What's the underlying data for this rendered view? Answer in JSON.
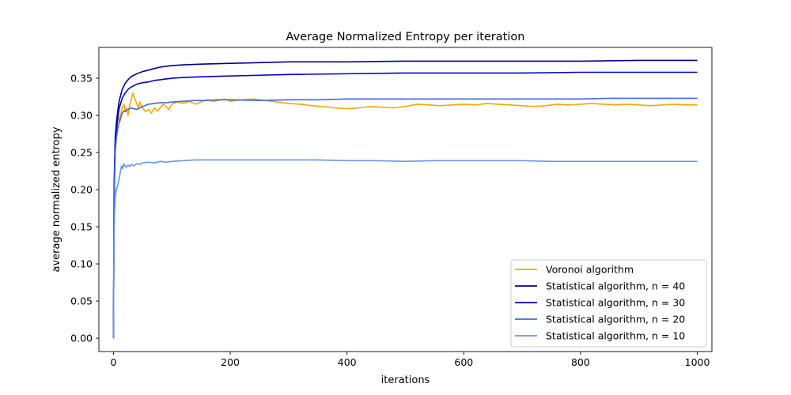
{
  "chart_data": {
    "type": "line",
    "title": "Average Normalized Entropy per iteration",
    "xlabel": "iterations",
    "ylabel": "average normalized entropy",
    "xlim": [
      -25,
      1025
    ],
    "ylim": [
      -0.018,
      0.3915
    ],
    "xticks": [
      0,
      200,
      400,
      600,
      800,
      1000
    ],
    "xtick_labels": [
      "0",
      "200",
      "400",
      "600",
      "800",
      "1000"
    ],
    "yticks": [
      0.0,
      0.05,
      0.1,
      0.15,
      0.2,
      0.25,
      0.3,
      0.35
    ],
    "ytick_labels": [
      "0.00",
      "0.05",
      "0.10",
      "0.15",
      "0.20",
      "0.25",
      "0.30",
      "0.35"
    ],
    "grid": false,
    "legend_position": "lower-right",
    "series": [
      {
        "name": "Voronoi algorithm",
        "color": "#ffa500",
        "x": [
          0,
          1,
          2,
          3,
          5,
          8,
          10,
          12,
          15,
          18,
          20,
          22,
          25,
          28,
          30,
          33,
          35,
          38,
          40,
          43,
          45,
          48,
          50,
          55,
          60,
          65,
          70,
          75,
          80,
          85,
          90,
          95,
          100,
          110,
          120,
          130,
          140,
          150,
          160,
          170,
          180,
          190,
          200,
          220,
          240,
          260,
          280,
          300,
          320,
          340,
          360,
          380,
          400,
          420,
          440,
          460,
          480,
          500,
          520,
          540,
          560,
          580,
          600,
          620,
          640,
          660,
          680,
          700,
          720,
          740,
          760,
          780,
          800,
          820,
          840,
          860,
          880,
          900,
          920,
          940,
          960,
          980,
          1000
        ],
        "y": [
          0.0,
          0.15,
          0.2,
          0.25,
          0.28,
          0.3,
          0.29,
          0.3,
          0.31,
          0.315,
          0.305,
          0.31,
          0.3,
          0.315,
          0.32,
          0.33,
          0.325,
          0.32,
          0.315,
          0.31,
          0.318,
          0.312,
          0.31,
          0.305,
          0.308,
          0.303,
          0.31,
          0.306,
          0.31,
          0.315,
          0.312,
          0.308,
          0.315,
          0.318,
          0.316,
          0.319,
          0.315,
          0.318,
          0.321,
          0.319,
          0.32,
          0.322,
          0.319,
          0.321,
          0.322,
          0.32,
          0.318,
          0.316,
          0.315,
          0.313,
          0.312,
          0.31,
          0.309,
          0.31,
          0.312,
          0.311,
          0.31,
          0.312,
          0.315,
          0.314,
          0.313,
          0.314,
          0.315,
          0.314,
          0.316,
          0.315,
          0.314,
          0.313,
          0.312,
          0.313,
          0.315,
          0.314,
          0.315,
          0.316,
          0.315,
          0.314,
          0.315,
          0.314,
          0.313,
          0.314,
          0.315,
          0.314,
          0.314
        ]
      },
      {
        "name": "Statistical algorithm, n = 40",
        "color": "#00008b",
        "x": [
          0,
          1,
          2,
          3,
          5,
          8,
          10,
          15,
          20,
          25,
          30,
          40,
          50,
          60,
          70,
          80,
          90,
          100,
          120,
          150,
          200,
          250,
          300,
          400,
          500,
          600,
          700,
          800,
          900,
          1000
        ],
        "y": [
          0.0,
          0.2,
          0.24,
          0.27,
          0.29,
          0.31,
          0.32,
          0.335,
          0.343,
          0.348,
          0.352,
          0.356,
          0.359,
          0.361,
          0.363,
          0.365,
          0.366,
          0.367,
          0.368,
          0.369,
          0.37,
          0.371,
          0.372,
          0.372,
          0.373,
          0.373,
          0.373,
          0.373,
          0.374,
          0.374
        ]
      },
      {
        "name": "Statistical algorithm, n = 30",
        "color": "#0000cd",
        "x": [
          0,
          1,
          2,
          3,
          5,
          8,
          10,
          15,
          20,
          25,
          30,
          40,
          50,
          60,
          70,
          80,
          90,
          100,
          120,
          150,
          200,
          250,
          300,
          400,
          500,
          600,
          700,
          800,
          900,
          1000
        ],
        "y": [
          0.0,
          0.19,
          0.23,
          0.26,
          0.28,
          0.3,
          0.31,
          0.323,
          0.33,
          0.335,
          0.338,
          0.342,
          0.344,
          0.345,
          0.347,
          0.348,
          0.349,
          0.35,
          0.351,
          0.352,
          0.353,
          0.354,
          0.355,
          0.356,
          0.357,
          0.357,
          0.357,
          0.358,
          0.358,
          0.358
        ]
      },
      {
        "name": "Statistical algorithm, n = 20",
        "color": "#4169e1",
        "x": [
          0,
          1,
          2,
          3,
          5,
          8,
          10,
          13,
          15,
          18,
          20,
          25,
          30,
          35,
          40,
          50,
          60,
          70,
          80,
          90,
          100,
          120,
          140,
          160,
          180,
          200,
          250,
          300,
          350,
          400,
          450,
          500,
          550,
          600,
          650,
          700,
          750,
          800,
          850,
          900,
          950,
          1000
        ],
        "y": [
          0.0,
          0.18,
          0.22,
          0.25,
          0.27,
          0.285,
          0.29,
          0.298,
          0.303,
          0.306,
          0.305,
          0.308,
          0.31,
          0.309,
          0.308,
          0.312,
          0.315,
          0.316,
          0.317,
          0.317,
          0.318,
          0.319,
          0.32,
          0.32,
          0.321,
          0.321,
          0.32,
          0.321,
          0.321,
          0.322,
          0.322,
          0.322,
          0.322,
          0.322,
          0.322,
          0.322,
          0.322,
          0.322,
          0.323,
          0.323,
          0.323,
          0.323
        ]
      },
      {
        "name": "Statistical algorithm, n = 10",
        "color": "#6495ed",
        "x": [
          0,
          1,
          2,
          3,
          5,
          7,
          10,
          12,
          14,
          16,
          18,
          20,
          22,
          25,
          28,
          30,
          35,
          40,
          45,
          50,
          60,
          70,
          80,
          90,
          100,
          120,
          140,
          160,
          180,
          200,
          250,
          300,
          350,
          400,
          450,
          500,
          550,
          600,
          650,
          700,
          750,
          800,
          850,
          900,
          950,
          1000
        ],
        "y": [
          0.0,
          0.14,
          0.17,
          0.19,
          0.2,
          0.205,
          0.215,
          0.225,
          0.232,
          0.228,
          0.235,
          0.232,
          0.23,
          0.233,
          0.231,
          0.234,
          0.232,
          0.235,
          0.234,
          0.236,
          0.237,
          0.236,
          0.238,
          0.237,
          0.238,
          0.239,
          0.24,
          0.24,
          0.24,
          0.24,
          0.24,
          0.24,
          0.24,
          0.239,
          0.239,
          0.238,
          0.239,
          0.239,
          0.239,
          0.239,
          0.238,
          0.238,
          0.238,
          0.238,
          0.238,
          0.238
        ]
      }
    ]
  }
}
